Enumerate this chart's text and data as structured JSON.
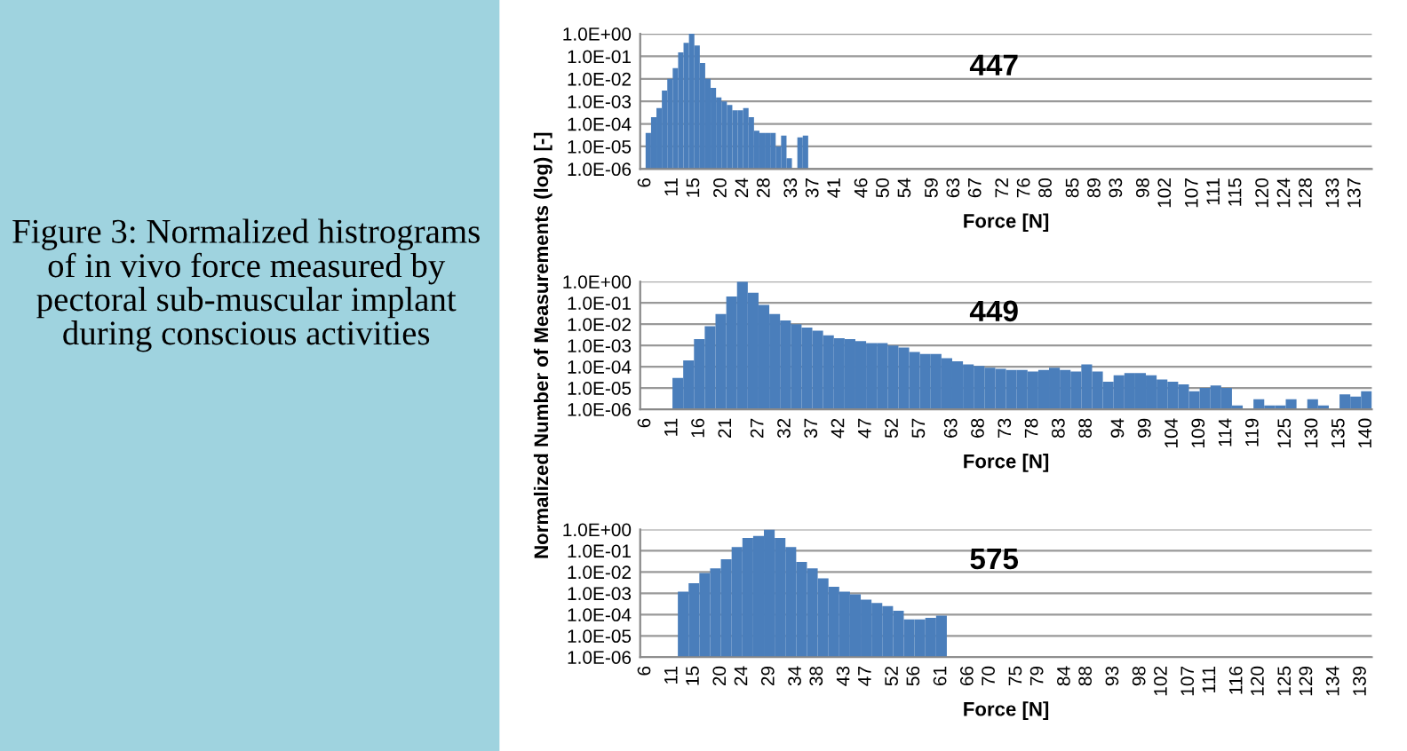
{
  "chart_data": [
    {
      "type": "histogram",
      "xlabel": "Force [N]",
      "annotations": [
        "447",
        "Figure 3: Normalized histrograms of in vivo force measured by pectoral sub-muscular implant during conscious activities"
      ],
      "color": "#4a7ebb",
      "log": "y",
      "grid": "y",
      "bins": [
        6,
        7,
        8,
        9,
        10,
        11,
        12,
        13,
        14,
        15,
        16,
        17,
        18,
        19,
        20,
        21,
        22,
        23,
        24,
        25,
        26,
        27,
        28,
        29,
        30,
        31,
        32,
        33,
        34,
        35,
        36
      ],
      "values": [
        4e-05,
        0.0002,
        0.0005,
        0.003,
        0.01,
        0.03,
        0.15,
        0.4,
        1.0,
        0.3,
        0.05,
        0.01,
        0.004,
        0.0015,
        0.001,
        0.0007,
        0.0004,
        0.0004,
        0.0005,
        0.0002,
        5e-05,
        4e-05,
        4e-05,
        4e-05,
        1e-05,
        3e-05,
        3e-06,
        1e-06,
        2.5e-05,
        3e-05
      ],
      "xlim": [
        5,
        140
      ],
      "xticks": [
        6,
        11,
        15,
        20,
        24,
        28,
        33,
        37,
        41,
        46,
        50,
        54,
        59,
        63,
        67,
        72,
        76,
        80,
        85,
        89,
        93,
        98,
        102,
        107,
        111,
        115,
        120,
        124,
        128,
        133,
        137
      ],
      "ylim": [
        1e-06,
        1
      ],
      "yticks": [
        {
          "value": 1e-06,
          "label": "1.0E-06"
        },
        {
          "value": 1e-05,
          "label": "1.0E-05"
        },
        {
          "value": 0.0001,
          "label": "1.0E-04"
        },
        {
          "value": 0.001,
          "label": "1.0E-03"
        },
        {
          "value": 0.01,
          "label": "1.0E-02"
        },
        {
          "value": 0.1,
          "label": "1.0E-01"
        },
        {
          "value": 1,
          "label": "1.0E+00"
        }
      ]
    },
    {
      "type": "histogram",
      "xlabel": "Force [N]",
      "ylabel": "Normalized Number of Measurements (log) [-]",
      "annotations": [
        "449"
      ],
      "color": "#4a7ebb",
      "log": "y",
      "grid": "y",
      "bins": [
        11,
        13,
        15,
        17,
        19,
        21,
        23,
        25,
        27,
        29,
        31,
        33,
        35,
        37,
        39,
        41,
        43,
        45,
        47,
        49,
        51,
        53,
        55,
        57,
        59,
        61,
        63,
        65,
        67,
        69,
        71,
        73,
        75,
        77,
        79,
        81,
        83,
        85,
        87,
        89,
        91,
        93,
        95,
        97,
        99,
        101,
        103,
        105,
        107,
        109,
        111,
        113,
        115,
        117,
        119,
        121,
        123,
        125,
        127,
        129,
        131,
        133,
        135,
        137,
        139,
        141
      ],
      "values": [
        3e-05,
        0.0002,
        0.002,
        0.008,
        0.03,
        0.2,
        1.0,
        0.3,
        0.08,
        0.03,
        0.015,
        0.01,
        0.007,
        0.005,
        0.003,
        0.0022,
        0.002,
        0.0016,
        0.0013,
        0.0013,
        0.001,
        0.0008,
        0.0005,
        0.0004,
        0.0004,
        0.00025,
        0.00018,
        0.00013,
        0.00011,
        9e-05,
        8e-05,
        7e-05,
        7e-05,
        6e-05,
        7e-05,
        9e-05,
        7e-05,
        6e-05,
        0.00013,
        6e-05,
        2e-05,
        4e-05,
        5e-05,
        5e-05,
        4e-05,
        2.5e-05,
        2e-05,
        1.5e-05,
        7e-06,
        1e-05,
        1.3e-05,
        1e-05,
        1.5e-06,
        null,
        3e-06,
        1.5e-06,
        1.5e-06,
        3e-06,
        null,
        3e-06,
        1.5e-06,
        null,
        5e-06,
        4e-06,
        7e-06
      ],
      "xlim": [
        5,
        141
      ],
      "xticks": [
        6,
        11,
        16,
        21,
        27,
        32,
        37,
        42,
        47,
        52,
        57,
        63,
        68,
        73,
        78,
        83,
        88,
        94,
        99,
        104,
        109,
        114,
        119,
        125,
        130,
        135,
        140
      ],
      "ylim": [
        1e-06,
        1
      ],
      "yticks": [
        {
          "value": 1e-06,
          "label": "1.0E-06"
        },
        {
          "value": 1e-05,
          "label": "1.0E-05"
        },
        {
          "value": 0.0001,
          "label": "1.0E-04"
        },
        {
          "value": 0.001,
          "label": "1.0E-03"
        },
        {
          "value": 0.01,
          "label": "1.0E-02"
        },
        {
          "value": 0.1,
          "label": "1.0E-01"
        },
        {
          "value": 1,
          "label": "1.0E+00"
        }
      ]
    },
    {
      "type": "histogram",
      "xlabel": "Force [N]",
      "annotations": [
        "575"
      ],
      "color": "#4a7ebb",
      "log": "y",
      "grid": "y",
      "bins": [
        12,
        14,
        16,
        18,
        20,
        22,
        24,
        26,
        28,
        30,
        32,
        34,
        36,
        38,
        40,
        42,
        44,
        46,
        48,
        50,
        52,
        54,
        56,
        58,
        60,
        62
      ],
      "values": [
        0.0012,
        0.003,
        0.009,
        0.015,
        0.04,
        0.15,
        0.4,
        0.5,
        1.0,
        0.4,
        0.15,
        0.03,
        0.015,
        0.005,
        0.002,
        0.0012,
        0.0009,
        0.0005,
        0.00035,
        0.00025,
        0.00015,
        6e-05,
        6e-05,
        7e-05,
        9e-05
      ],
      "xlim": [
        5,
        141
      ],
      "xticks": [
        6,
        11,
        15,
        20,
        24,
        29,
        34,
        38,
        43,
        47,
        52,
        56,
        61,
        66,
        70,
        75,
        79,
        84,
        88,
        93,
        98,
        102,
        107,
        111,
        116,
        120,
        125,
        129,
        134,
        139
      ],
      "ylim": [
        1e-06,
        1
      ],
      "yticks": [
        {
          "value": 1e-06,
          "label": "1.0E-06"
        },
        {
          "value": 1e-05,
          "label": "1.0E-05"
        },
        {
          "value": 0.0001,
          "label": "1.0E-04"
        },
        {
          "value": 0.001,
          "label": "1.0E-03"
        },
        {
          "value": 0.01,
          "label": "1.0E-02"
        },
        {
          "value": 0.1,
          "label": "1.0E-01"
        },
        {
          "value": 1,
          "label": "1.0E+00"
        }
      ]
    }
  ]
}
